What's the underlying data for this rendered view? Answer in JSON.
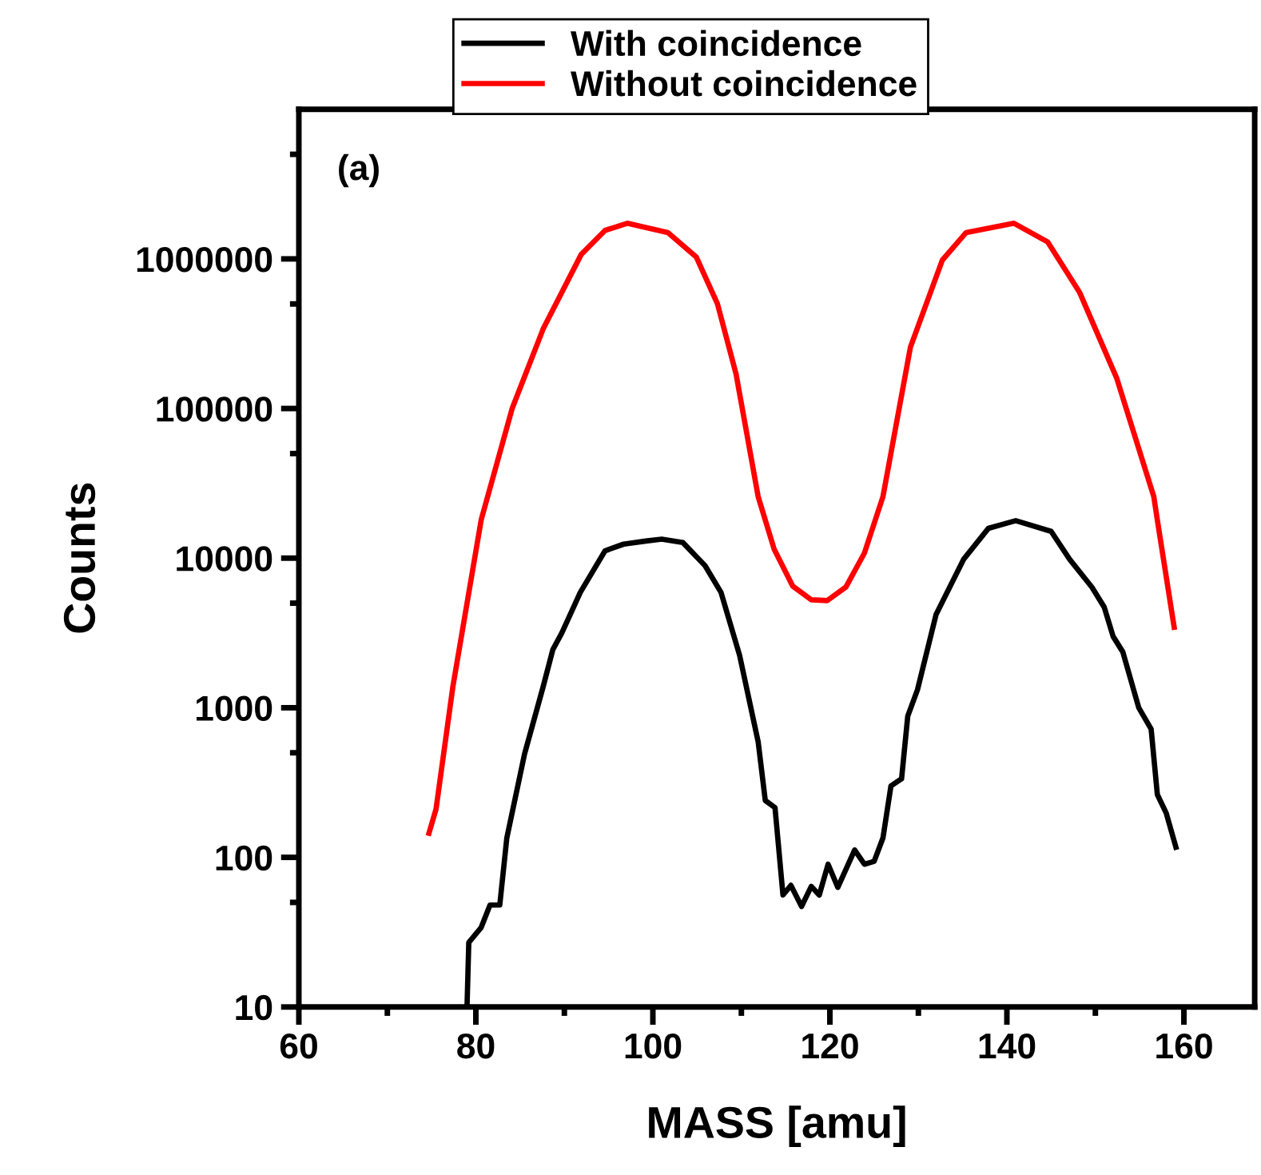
{
  "chart_data": {
    "type": "line",
    "xlabel": "MASS [amu]",
    "ylabel": "Counts",
    "log": "y",
    "grid": false,
    "legend": "top",
    "marker": "none",
    "line_style": "solid",
    "annotations": [
      "(a)"
    ],
    "xlim": [
      60,
      168
    ],
    "xticks": [
      60,
      {
        "value": 70,
        "label": null
      },
      80,
      {
        "value": 90,
        "label": null
      },
      100,
      {
        "value": 110,
        "label": null
      },
      120,
      {
        "value": 130,
        "label": null
      },
      140,
      {
        "value": 150,
        "label": null
      },
      160
    ],
    "ylim": [
      10,
      10000000
    ],
    "yticks": [
      10,
      {
        "value": 50,
        "label": null
      },
      100,
      {
        "value": 500,
        "label": null
      },
      1000,
      {
        "value": 5000,
        "label": null
      },
      10000,
      {
        "value": 50000,
        "label": null
      },
      100000,
      {
        "value": 500000,
        "label": null
      },
      1000000,
      {
        "value": 5000000,
        "label": null
      }
    ],
    "series": [
      {
        "name": "With coincidence",
        "color": "#000000",
        "x": [
          79.0,
          79.2,
          80.6,
          81.6,
          82.7,
          83.5,
          85.5,
          87.6,
          88.7,
          89.7,
          91.8,
          94.6,
          96.7,
          99.2,
          101.0,
          103.4,
          105.9,
          107.7,
          109.8,
          111.9,
          112.7,
          113.8,
          114.7,
          115.6,
          116.8,
          117.9,
          118.8,
          119.8,
          120.9,
          122.8,
          123.9,
          125.0,
          126.0,
          126.9,
          128.1,
          128.8,
          129.9,
          132.0,
          135.1,
          137.9,
          141.0,
          145.0,
          147.1,
          149.6,
          151.0,
          152.0,
          153.1,
          154.9,
          156.3,
          157.0,
          158.0,
          159.1
        ],
        "values": [
          10,
          27,
          34,
          48,
          48,
          135,
          490,
          1380,
          2450,
          3150,
          5900,
          11200,
          12400,
          13000,
          13400,
          12700,
          8900,
          5900,
          2240,
          590,
          240,
          215,
          56,
          65,
          47,
          64,
          56,
          90,
          63,
          112,
          90,
          94,
          135,
          300,
          335,
          880,
          1320,
          4200,
          9800,
          15800,
          17800,
          15100,
          9800,
          6400,
          4700,
          3000,
          2360,
          1000,
          720,
          263,
          198,
          117
        ]
      },
      {
        "name": "Without coincidence",
        "color": "#ff0000",
        "x": [
          74.7,
          75.5,
          77.4,
          80.6,
          84.1,
          87.6,
          91.9,
          94.6,
          97.1,
          101.7,
          104.9,
          107.3,
          109.4,
          111.9,
          113.7,
          115.8,
          117.9,
          119.7,
          121.8,
          123.9,
          126.0,
          129.1,
          132.7,
          135.4,
          140.8,
          144.6,
          148.2,
          152.4,
          156.6,
          157.0,
          158.9
        ],
        "values": [
          145,
          210,
          1380,
          18000,
          100000,
          340000,
          1070000,
          1550000,
          1730000,
          1500000,
          1030000,
          500000,
          170000,
          25700,
          11500,
          6500,
          5270,
          5200,
          6400,
          10800,
          25800,
          257000,
          980000,
          1500000,
          1730000,
          1300000,
          600000,
          160000,
          25800,
          18000,
          3450
        ]
      }
    ]
  }
}
